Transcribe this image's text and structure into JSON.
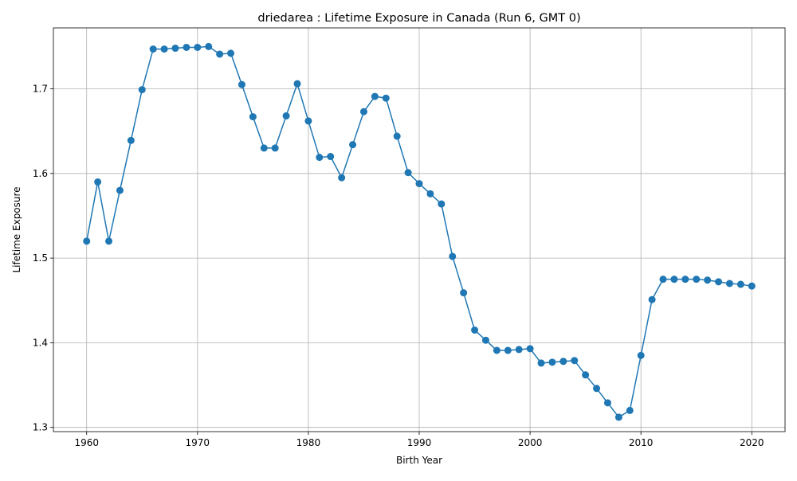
{
  "chart_data": {
    "type": "line",
    "title": "driedarea : Lifetime Exposure in Canada (Run 6, GMT 0)",
    "xlabel": "Birth Year",
    "ylabel": "Lifetime Exposure",
    "xlim": [
      1957,
      2023
    ],
    "ylim": [
      1.295,
      1.772
    ],
    "xticks": [
      1960,
      1970,
      1980,
      1990,
      2000,
      2010,
      2020
    ],
    "yticks": [
      1.3,
      1.4,
      1.5,
      1.6,
      1.7
    ],
    "ytick_labels": [
      "1.3",
      "1.4",
      "1.5",
      "1.6",
      "1.7"
    ],
    "grid": true,
    "color": "#1f77b4",
    "marker": "circle",
    "x": [
      1960,
      1961,
      1962,
      1963,
      1964,
      1965,
      1966,
      1967,
      1968,
      1969,
      1970,
      1971,
      1972,
      1973,
      1974,
      1975,
      1976,
      1977,
      1978,
      1979,
      1980,
      1981,
      1982,
      1983,
      1984,
      1985,
      1986,
      1987,
      1988,
      1989,
      1990,
      1991,
      1992,
      1993,
      1994,
      1995,
      1996,
      1997,
      1998,
      1999,
      2000,
      2001,
      2002,
      2003,
      2004,
      2005,
      2006,
      2007,
      2008,
      2009,
      2010,
      2011,
      2012,
      2013,
      2014,
      2015,
      2016,
      2017,
      2018,
      2019,
      2020
    ],
    "y": [
      1.52,
      1.59,
      1.52,
      1.58,
      1.639,
      1.699,
      1.747,
      1.747,
      1.748,
      1.749,
      1.749,
      1.75,
      1.741,
      1.742,
      1.705,
      1.667,
      1.63,
      1.63,
      1.668,
      1.706,
      1.662,
      1.619,
      1.62,
      1.595,
      1.634,
      1.673,
      1.691,
      1.689,
      1.644,
      1.601,
      1.588,
      1.576,
      1.564,
      1.502,
      1.459,
      1.415,
      1.403,
      1.391,
      1.391,
      1.392,
      1.393,
      1.376,
      1.377,
      1.378,
      1.379,
      1.362,
      1.346,
      1.329,
      1.312,
      1.32,
      1.385,
      1.451,
      1.475,
      1.475,
      1.475,
      1.475,
      1.474,
      1.472,
      1.47,
      1.469,
      1.467
    ]
  }
}
